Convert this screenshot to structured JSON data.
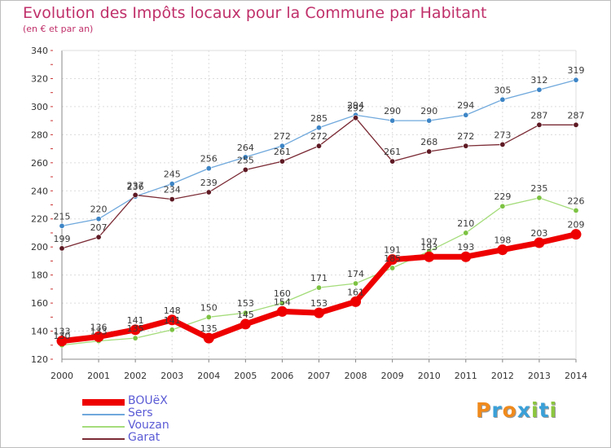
{
  "header": {
    "title": "Evolution des Impôts locaux pour la Commune par Habitant",
    "subtitle": "(en € et par an)"
  },
  "logo": {
    "letters": [
      "P",
      "r",
      "o",
      "x",
      "i",
      "t",
      "i"
    ],
    "colors": [
      "#f08a1c",
      "#3aa0d8",
      "#f08a1c",
      "#3aa0d8",
      "#8cc63f",
      "#3aa0d8",
      "#8cc63f"
    ]
  },
  "chart_data": {
    "type": "line",
    "title": "Evolution des Impôts locaux pour la Commune par Habitant",
    "subtitle": "(en € et par an)",
    "xlabel": "",
    "ylabel": "",
    "x": [
      2000,
      2001,
      2002,
      2003,
      2004,
      2005,
      2006,
      2007,
      2008,
      2009,
      2010,
      2011,
      2012,
      2013,
      2014
    ],
    "ylim": [
      120,
      340
    ],
    "yticks": [
      120,
      140,
      160,
      180,
      200,
      220,
      240,
      260,
      280,
      300,
      320,
      340
    ],
    "grid": true,
    "legend_position": "bottom-left",
    "series": [
      {
        "name": "BOUëX",
        "color": "#ee0000",
        "style": "thick",
        "values": [
          133,
          136,
          141,
          148,
          135,
          145,
          154,
          153,
          161,
          191,
          193,
          193,
          198,
          203,
          209
        ]
      },
      {
        "name": "Sers",
        "color": "#6fa8dc",
        "style": "thin",
        "marker": "#3d85c6",
        "values": [
          215,
          220,
          236,
          245,
          256,
          264,
          272,
          285,
          294,
          290,
          290,
          294,
          305,
          312,
          319
        ]
      },
      {
        "name": "Vouzan",
        "color": "#a4dc7a",
        "style": "thin",
        "marker": "#7cc242",
        "values": [
          130,
          133,
          135,
          141,
          150,
          153,
          160,
          171,
          174,
          185,
          197,
          210,
          229,
          235,
          226
        ]
      },
      {
        "name": "Garat",
        "color": "#7b2b35",
        "style": "thin",
        "marker": "#5e1a24",
        "values": [
          199,
          207,
          237,
          234,
          239,
          255,
          261,
          272,
          292,
          261,
          268,
          272,
          273,
          287,
          287
        ]
      }
    ]
  }
}
